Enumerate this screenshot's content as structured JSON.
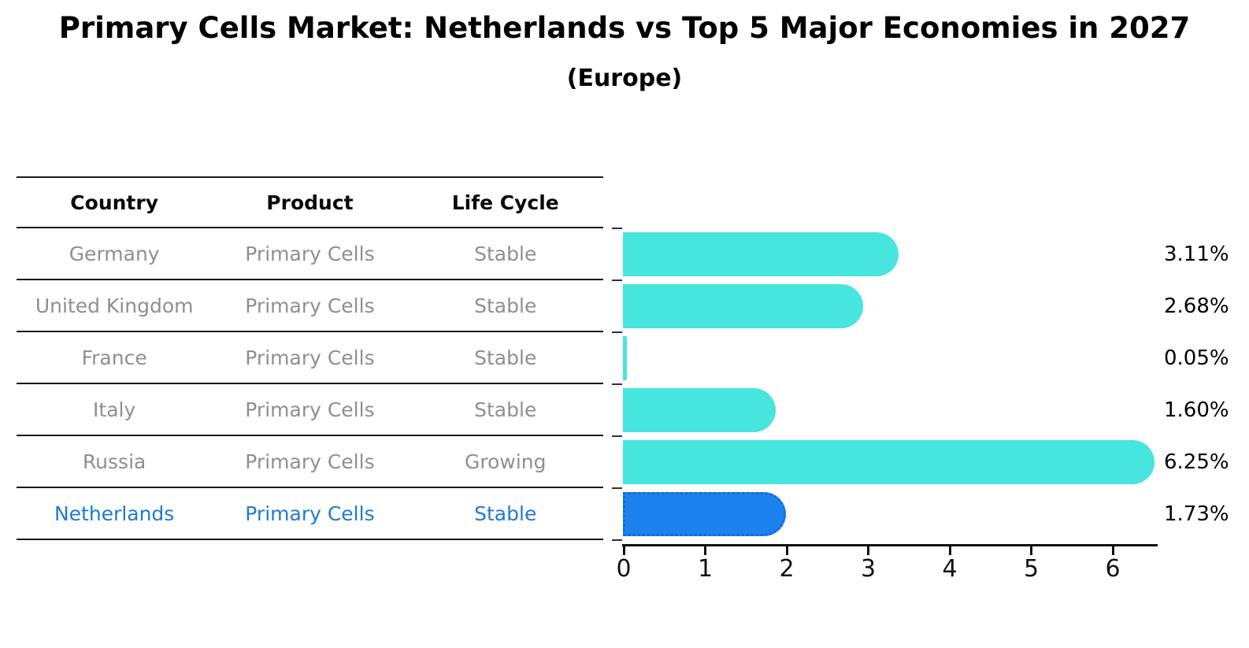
{
  "header": {
    "title": "Primary Cells Market: Netherlands vs Top 5 Major Economies in 2027",
    "subtitle": "(Europe)"
  },
  "table": {
    "columns": [
      "Country",
      "Product",
      "Life Cycle"
    ],
    "rows": [
      {
        "country": "Germany",
        "product": "Primary Cells",
        "life_cycle": "Stable",
        "highlight": false
      },
      {
        "country": "United Kingdom",
        "product": "Primary Cells",
        "life_cycle": "Stable",
        "highlight": false
      },
      {
        "country": "France",
        "product": "Primary Cells",
        "life_cycle": "Stable",
        "highlight": false
      },
      {
        "country": "Italy",
        "product": "Primary Cells",
        "life_cycle": "Stable",
        "highlight": false
      },
      {
        "country": "Russia",
        "product": "Primary Cells",
        "life_cycle": "Growing",
        "highlight": false
      },
      {
        "country": "Netherlands",
        "product": "Primary Cells",
        "life_cycle": "Stable",
        "highlight": true
      }
    ]
  },
  "chart_data": {
    "type": "bar",
    "orientation": "horizontal",
    "title": "Primary Cells Market: Netherlands vs Top 5 Major Economies in 2027 (Europe)",
    "categories": [
      "Germany",
      "United Kingdom",
      "France",
      "Italy",
      "Russia",
      "Netherlands"
    ],
    "values": [
      3.11,
      2.68,
      0.05,
      1.6,
      6.25,
      1.73
    ],
    "value_labels": [
      "3.11%",
      "2.68%",
      "0.05%",
      "1.60%",
      "6.25%",
      "1.73%"
    ],
    "highlight_index": 5,
    "xlim": [
      0,
      6.6
    ],
    "xticks": [
      "0",
      "1",
      "2",
      "3",
      "4",
      "5",
      "6"
    ],
    "grid": false,
    "legend": false,
    "bar_color": "#46e5de",
    "highlight_bar_color": "#1c82ee",
    "highlight_border_color": "#1668dd"
  },
  "colors": {
    "background": "#ffffff",
    "table_line": "#1a1a1a",
    "table_text": "#8f8f8f",
    "header_text": "#0a0a0a",
    "highlight_text": "#1f7bd0",
    "axis": "#111111"
  }
}
